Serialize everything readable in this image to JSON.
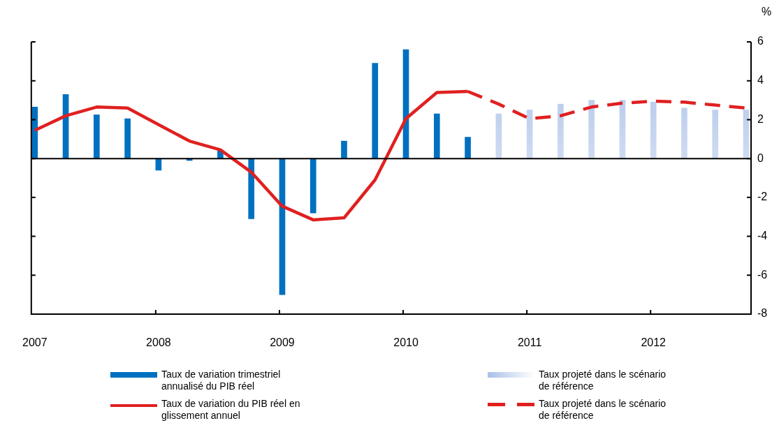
{
  "chart_data": {
    "type": "bar",
    "ylabel": "%",
    "categories": [
      "2007",
      null,
      null,
      null,
      "2008",
      null,
      null,
      null,
      "2009",
      null,
      null,
      null,
      "2010",
      null,
      null,
      null,
      "2011",
      null,
      null,
      null,
      "2012",
      null,
      null,
      null
    ],
    "series": [
      {
        "name": "Taux de variation trimestriel annualisé du PIB réel",
        "color": "#0070c0",
        "values": [
          2.65,
          3.3,
          2.25,
          2.05,
          -0.6,
          -0.1,
          0.4,
          -3.1,
          -7.0,
          -2.8,
          0.9,
          4.9,
          5.6,
          2.3,
          1.1,
          null,
          null,
          null,
          null,
          null,
          null,
          null,
          null,
          null
        ]
      },
      {
        "name": "Taux projeté dans le scénario de référence",
        "color": "#a9c0e8",
        "values": [
          null,
          null,
          null,
          null,
          null,
          null,
          null,
          null,
          null,
          null,
          null,
          null,
          null,
          null,
          null,
          2.3,
          2.5,
          2.8,
          3.0,
          3.0,
          2.9,
          2.6,
          2.5,
          2.5
        ]
      },
      {
        "name": "Taux de variation du PIB réel en glissement annuel",
        "type": "line",
        "line_style": "solid",
        "color": "#e02020",
        "values": [
          1.45,
          2.2,
          2.65,
          2.6,
          1.75,
          0.9,
          0.45,
          -0.7,
          -2.45,
          -3.15,
          -3.05,
          -1.1,
          2.05,
          3.4,
          3.45,
          null,
          null,
          null,
          null,
          null,
          null,
          null,
          null,
          null
        ]
      },
      {
        "name": "Taux projeté dans le scénario de référence",
        "type": "line",
        "line_style": "dashed",
        "color": "#e02020",
        "values": [
          null,
          null,
          null,
          null,
          null,
          null,
          null,
          null,
          null,
          null,
          null,
          null,
          null,
          null,
          3.45,
          2.8,
          2.05,
          2.2,
          2.65,
          2.85,
          2.95,
          2.9,
          2.75,
          2.6
        ]
      }
    ],
    "ylim": [
      -8,
      6
    ],
    "yticks": [
      -8,
      -6,
      -4,
      -2,
      0,
      2,
      4,
      6
    ],
    "ref_lines": [
      {
        "axis": "y",
        "value": 0,
        "color": "#000000"
      }
    ],
    "grid": false,
    "legend": "bottom",
    "marker": "none"
  }
}
